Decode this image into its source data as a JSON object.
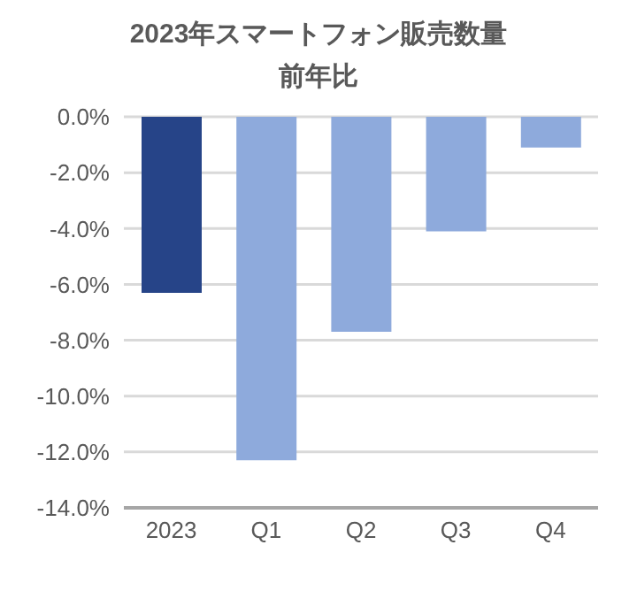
{
  "chart_data": {
    "type": "bar",
    "title": "2023年スマートフォン販売数量",
    "subtitle": "前年比",
    "categories": [
      "2023",
      "Q1",
      "Q2",
      "Q3",
      "Q4"
    ],
    "values": [
      -6.3,
      -12.3,
      -7.7,
      -4.1,
      -1.1
    ],
    "colors": [
      "#264488",
      "#8eaadc",
      "#8eaadc",
      "#8eaadc",
      "#8eaadc"
    ],
    "ylim": [
      -14,
      0
    ],
    "yticks": [
      {
        "value": 0,
        "label": "0.0%"
      },
      {
        "value": -2,
        "label": "-2.0%"
      },
      {
        "value": -4,
        "label": "-4.0%"
      },
      {
        "value": -6,
        "label": "-6.0%"
      },
      {
        "value": -8,
        "label": "-8.0%"
      },
      {
        "value": -10,
        "label": "-10.0%"
      },
      {
        "value": -12,
        "label": "-12.0%"
      },
      {
        "value": -14,
        "label": "-14.0%"
      }
    ],
    "grid": "y"
  }
}
